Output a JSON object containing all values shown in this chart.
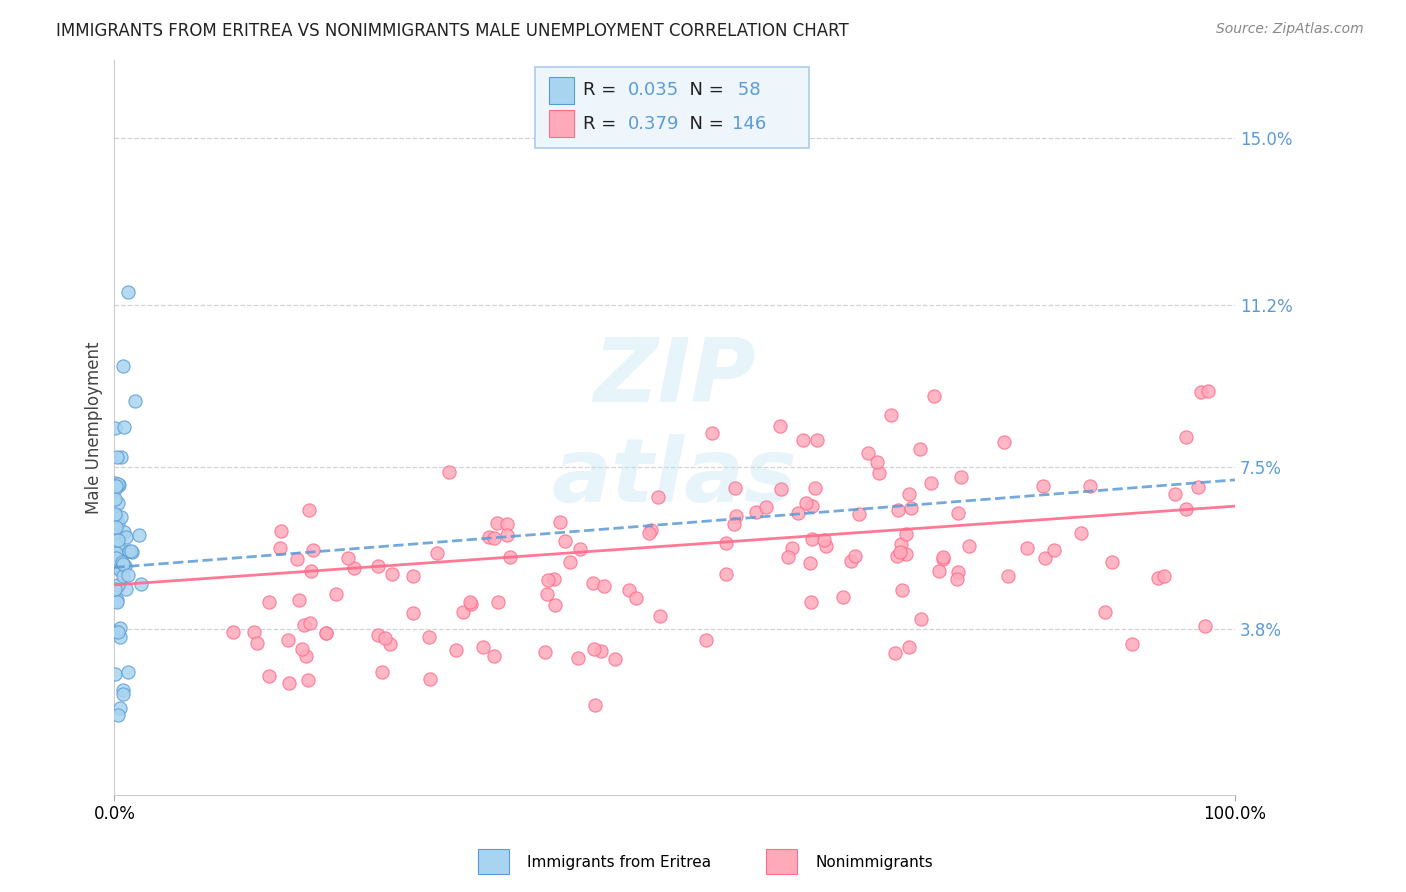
{
  "title": "IMMIGRANTS FROM ERITREA VS NONIMMIGRANTS MALE UNEMPLOYMENT CORRELATION CHART",
  "source": "Source: ZipAtlas.com",
  "ylabel": "Male Unemployment",
  "xlim": [
    0,
    100
  ],
  "ylim": [
    0,
    16.8
  ],
  "yticks": [
    3.8,
    7.5,
    11.2,
    15.0
  ],
  "xticklabels": [
    "0.0%",
    "100.0%"
  ],
  "yticklabels": [
    "3.8%",
    "7.5%",
    "11.2%",
    "15.0%"
  ],
  "blue_R": "0.035",
  "blue_N": "58",
  "pink_R": "0.379",
  "pink_N": "146",
  "blue_fill": "#A8D4F0",
  "blue_edge": "#5B9BD5",
  "pink_fill": "#FFAABB",
  "pink_edge": "#FF6B8A",
  "blue_line_color": "#5B9BD5",
  "pink_line_color": "#FF6B8A",
  "grid_color": "#C8C8C8",
  "title_color": "#222222",
  "tick_label_color": "#5B9BD5",
  "legend_bg": "#EEF6FC",
  "legend_border": "#AACCEE",
  "watermark_color": "#BDE0F0"
}
